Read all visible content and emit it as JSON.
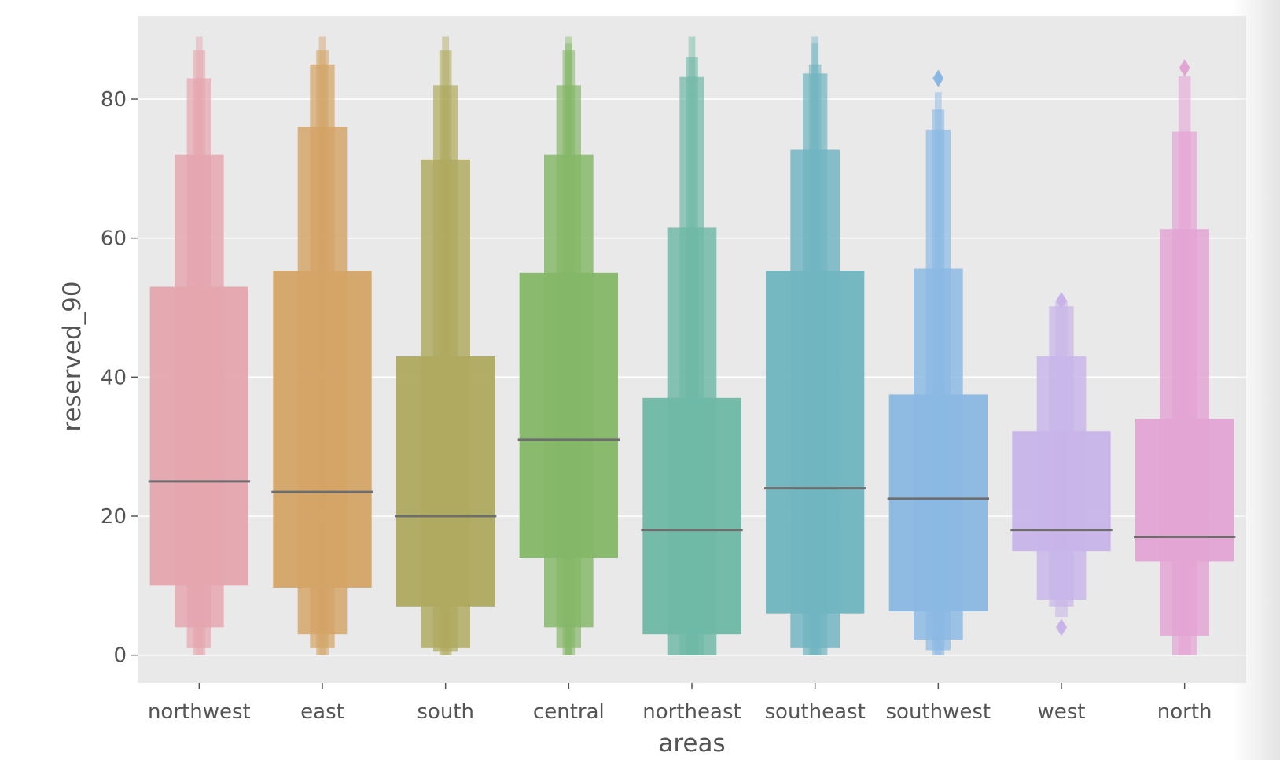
{
  "chart_data": {
    "type": "boxen",
    "xlabel": "areas",
    "ylabel": "reserved_90",
    "ylim": [
      -4,
      92
    ],
    "yticks": [
      0,
      20,
      40,
      60,
      80
    ],
    "grid": true,
    "categories": [
      "northwest",
      "east",
      "south",
      "central",
      "northeast",
      "southeast",
      "southwest",
      "west",
      "north"
    ],
    "colors": [
      "#e5a5ae",
      "#d4a466",
      "#afaa5f",
      "#84b767",
      "#6fb8a6",
      "#70b5c0",
      "#8ab8e3",
      "#c8b4e9",
      "#e3a4d4"
    ],
    "series": [
      {
        "name": "northwest",
        "median": 25,
        "levels": [
          [
            10,
            53
          ],
          [
            4,
            72
          ],
          [
            1,
            83
          ],
          [
            0,
            87
          ],
          [
            0,
            89
          ]
        ],
        "outliers": []
      },
      {
        "name": "east",
        "median": 23.5,
        "levels": [
          [
            9.7,
            55.3
          ],
          [
            3,
            76
          ],
          [
            1,
            85
          ],
          [
            0,
            87
          ],
          [
            0,
            89
          ]
        ],
        "outliers": []
      },
      {
        "name": "south",
        "median": 20,
        "levels": [
          [
            7,
            43
          ],
          [
            1,
            71.3
          ],
          [
            0.5,
            82
          ],
          [
            0,
            87
          ],
          [
            0,
            89
          ]
        ],
        "outliers": []
      },
      {
        "name": "central",
        "median": 31,
        "levels": [
          [
            14,
            55
          ],
          [
            4,
            72
          ],
          [
            1,
            82
          ],
          [
            0,
            87
          ],
          [
            0,
            88
          ],
          [
            0,
            89
          ]
        ],
        "outliers": []
      },
      {
        "name": "northeast",
        "median": 18,
        "levels": [
          [
            3,
            37
          ],
          [
            0,
            61.5
          ],
          [
            0,
            83.2
          ],
          [
            0,
            86
          ],
          [
            0,
            89
          ]
        ],
        "outliers": []
      },
      {
        "name": "southeast",
        "median": 24,
        "levels": [
          [
            6,
            55.3
          ],
          [
            1,
            72.7
          ],
          [
            0,
            83.7
          ],
          [
            0,
            85
          ],
          [
            0,
            88
          ],
          [
            0,
            89
          ]
        ],
        "outliers": []
      },
      {
        "name": "southwest",
        "median": 22.5,
        "levels": [
          [
            6.3,
            37.5
          ],
          [
            2.2,
            55.6
          ],
          [
            0.7,
            75.6
          ],
          [
            0,
            78.5
          ],
          [
            0,
            81
          ]
        ],
        "outliers": [
          83
        ]
      },
      {
        "name": "west",
        "median": 18,
        "levels": [
          [
            15,
            32.2
          ],
          [
            8,
            43
          ],
          [
            7,
            50.2
          ],
          [
            5.5,
            51
          ]
        ],
        "outliers": [
          51,
          4
        ]
      },
      {
        "name": "north",
        "median": 17,
        "levels": [
          [
            13.5,
            34
          ],
          [
            2.8,
            61.3
          ],
          [
            0,
            75.3
          ],
          [
            0,
            83.3
          ]
        ],
        "outliers": [
          84.5
        ]
      }
    ]
  }
}
